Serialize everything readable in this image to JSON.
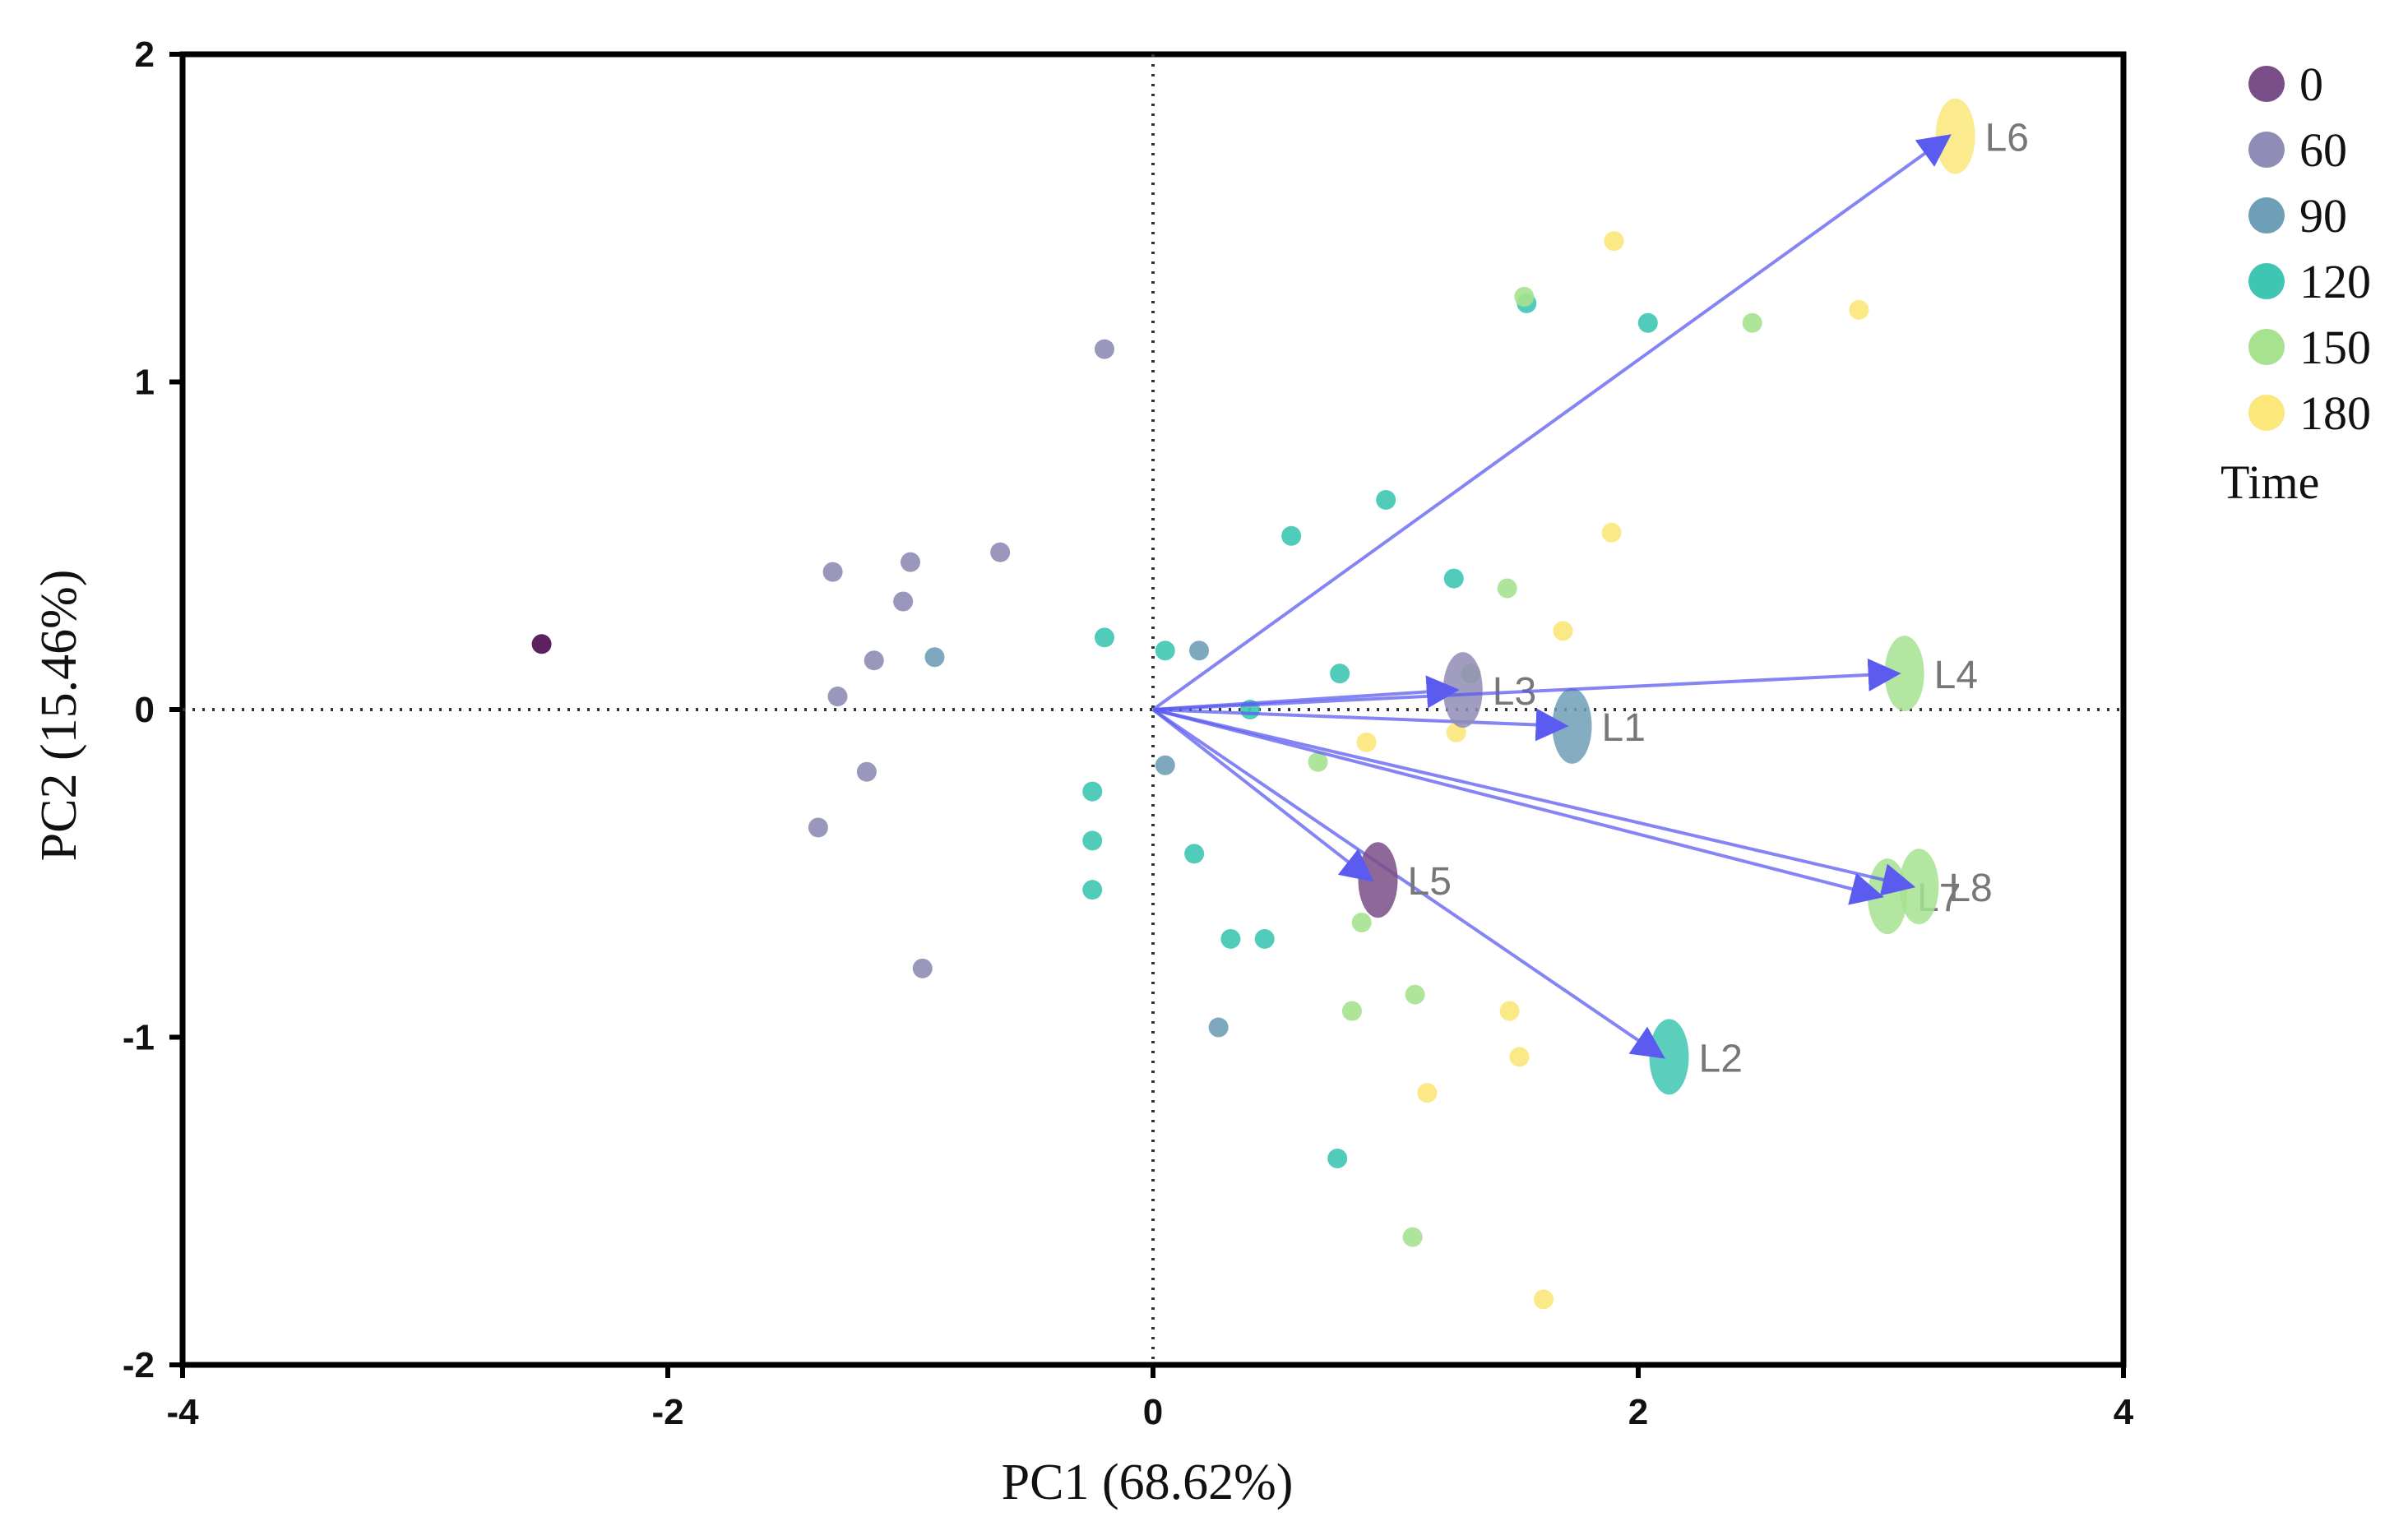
{
  "chart_data": {
    "type": "scatter",
    "subtype": "pca-biplot",
    "xlabel": "PC1 (68.62%)",
    "ylabel": "PC2 (15.46%)",
    "xlim": [
      -4,
      4
    ],
    "ylim": [
      -2,
      2
    ],
    "xticks": [
      "-4",
      "-2",
      "0",
      "2",
      "4"
    ],
    "yticks": [
      "-2",
      "-1",
      "0",
      "1",
      "2"
    ],
    "reference_lines": {
      "x": 0,
      "y": 0,
      "style": "dotted"
    },
    "legend": {
      "title": "Time",
      "position": "top-right",
      "entries": [
        {
          "label": "0",
          "color": "#7a4e86"
        },
        {
          "label": "60",
          "color": "#8f8cb5"
        },
        {
          "label": "90",
          "color": "#6f9fb7"
        },
        {
          "label": "120",
          "color": "#3ec6b2"
        },
        {
          "label": "150",
          "color": "#a6e28f"
        },
        {
          "label": "180",
          "color": "#fbe77a"
        }
      ]
    },
    "series": [
      {
        "name": "0",
        "color": "#4a0a4e",
        "points": [
          [
            -2.52,
            0.2
          ]
        ]
      },
      {
        "name": "60",
        "color": "#8f8cb5",
        "points": [
          [
            -0.2,
            1.1
          ],
          [
            -0.63,
            0.48
          ],
          [
            -1.0,
            0.45
          ],
          [
            -1.32,
            0.42
          ],
          [
            -1.03,
            0.33
          ],
          [
            -1.15,
            0.15
          ],
          [
            -1.3,
            0.04
          ],
          [
            -1.18,
            -0.19
          ],
          [
            -1.38,
            -0.36
          ],
          [
            -0.95,
            -0.79
          ]
        ]
      },
      {
        "name": "90",
        "color": "#6f9fb7",
        "points": [
          [
            -0.9,
            0.16
          ],
          [
            0.19,
            0.18
          ],
          [
            0.05,
            -0.17
          ],
          [
            0.27,
            -0.97
          ]
        ]
      },
      {
        "name": "120",
        "color": "#3ec6b2",
        "points": [
          [
            0.96,
            0.64
          ],
          [
            0.57,
            0.53
          ],
          [
            1.24,
            0.4
          ],
          [
            -0.2,
            0.22
          ],
          [
            0.05,
            0.18
          ],
          [
            0.77,
            0.11
          ],
          [
            0.4,
            0.0
          ],
          [
            -0.25,
            -0.25
          ],
          [
            -0.25,
            -0.4
          ],
          [
            -0.25,
            -0.55
          ],
          [
            0.17,
            -0.44
          ],
          [
            0.32,
            -0.7
          ],
          [
            0.46,
            -0.7
          ],
          [
            0.76,
            -1.37
          ],
          [
            1.54,
            1.24
          ],
          [
            2.04,
            1.18
          ]
        ]
      },
      {
        "name": "150",
        "color": "#a6e28f",
        "points": [
          [
            2.47,
            1.18
          ],
          [
            1.46,
            0.37
          ],
          [
            1.31,
            0.11
          ],
          [
            0.68,
            -0.16
          ],
          [
            0.86,
            -0.65
          ],
          [
            0.82,
            -0.92
          ],
          [
            1.08,
            -0.87
          ],
          [
            1.07,
            -1.61
          ],
          [
            1.53,
            1.26
          ]
        ]
      },
      {
        "name": "180",
        "color": "#fbe77a",
        "points": [
          [
            1.9,
            1.43
          ],
          [
            2.91,
            1.22
          ],
          [
            1.89,
            0.54
          ],
          [
            1.69,
            0.24
          ],
          [
            1.25,
            -0.07
          ],
          [
            0.88,
            -0.1
          ],
          [
            1.47,
            -0.92
          ],
          [
            1.51,
            -1.06
          ],
          [
            1.13,
            -1.17
          ],
          [
            1.61,
            -1.8
          ]
        ]
      }
    ],
    "loadings": [
      {
        "label": "L1",
        "x": 1.7,
        "y": -0.05,
        "color": "#6f9fb7"
      },
      {
        "label": "L2",
        "x": 2.1,
        "y": -1.06,
        "color": "#3ec6b2"
      },
      {
        "label": "L3",
        "x": 1.25,
        "y": 0.06,
        "color": "#8f8cb5"
      },
      {
        "label": "L4",
        "x": 3.07,
        "y": 0.11,
        "color": "#a6e28f"
      },
      {
        "label": "L5",
        "x": 0.9,
        "y": -0.52,
        "color": "#7a4e86"
      },
      {
        "label": "L6",
        "x": 3.28,
        "y": 1.75,
        "color": "#fbe77a"
      },
      {
        "label": "L7",
        "x": 3.0,
        "y": -0.57,
        "color": "#a6e28f"
      },
      {
        "label": "L8",
        "x": 3.13,
        "y": -0.54,
        "color": "#a6e28f"
      }
    ]
  }
}
